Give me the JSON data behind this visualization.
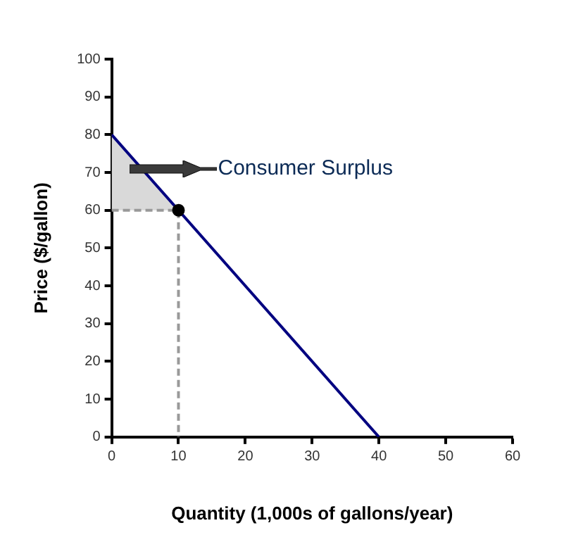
{
  "chart_data": {
    "type": "line",
    "xlabel": "Quantity (1,000s of gallons/year)",
    "ylabel": "Price ($/gallon)",
    "xlim": [
      0,
      60
    ],
    "xticks": [
      0,
      10,
      20,
      30,
      40,
      50,
      60
    ],
    "ylim": [
      0,
      100
    ],
    "yticks": [
      0,
      10,
      20,
      30,
      40,
      50,
      60,
      70,
      80,
      90,
      100
    ],
    "grid": false,
    "legend": false,
    "series": [
      {
        "type": "area",
        "x": [
          0,
          10,
          0
        ],
        "values": [
          80,
          60,
          60
        ],
        "color": "#d9d9d9"
      },
      {
        "type": "line",
        "x": [
          0,
          10,
          10
        ],
        "values": [
          60,
          60,
          0
        ],
        "color": "#999999",
        "line_style": "dashed",
        "marker": "none"
      },
      {
        "x": [
          0,
          40
        ],
        "values": [
          80,
          0
        ],
        "color": "#000080",
        "line_style": "solid",
        "marker": "none"
      },
      {
        "type": "scatter",
        "x": [
          10
        ],
        "values": [
          60
        ],
        "color": "#000000",
        "marker": "circle"
      }
    ],
    "annotations": [
      "Consumer Surplus"
    ]
  }
}
